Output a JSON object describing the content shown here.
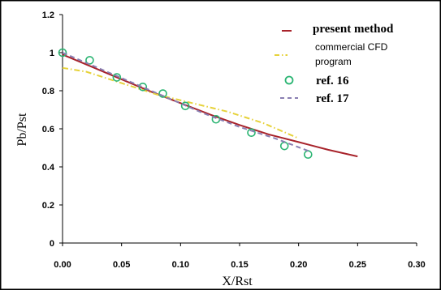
{
  "chart_data": {
    "type": "line",
    "title": "",
    "xlabel": "X/Rst",
    "ylabel": "Pb/Pst",
    "xlim": [
      0,
      0.3
    ],
    "ylim": [
      0,
      1.2
    ],
    "xticks": [
      0.0,
      0.05,
      0.1,
      0.15,
      0.2,
      0.25,
      0.3
    ],
    "xtick_labels": [
      "0.00",
      "0.05",
      "0.10",
      "0.15",
      "0.20",
      "0.25",
      "0.30"
    ],
    "yticks": [
      0,
      0.2,
      0.4,
      0.6,
      0.8,
      1.0,
      1.2
    ],
    "ytick_labels": [
      "0",
      "0.2",
      "0.4",
      "0.6",
      "0.8",
      "1",
      "1.2"
    ],
    "grid": false,
    "legend_position": "top-right",
    "series": [
      {
        "name": "present method",
        "style": "solid",
        "color": "#a8232b",
        "x": [
          0.0,
          0.025,
          0.05,
          0.075,
          0.1,
          0.125,
          0.15,
          0.175,
          0.2,
          0.225,
          0.25
        ],
        "y": [
          0.99,
          0.925,
          0.86,
          0.795,
          0.735,
          0.675,
          0.62,
          0.57,
          0.53,
          0.49,
          0.455
        ]
      },
      {
        "name": "commercial CFD program",
        "style": "dash-dot",
        "color": "#e6d23a",
        "x": [
          0.0,
          0.02,
          0.05,
          0.08,
          0.11,
          0.14,
          0.17,
          0.2
        ],
        "y": [
          0.92,
          0.9,
          0.84,
          0.78,
          0.735,
          0.69,
          0.63,
          0.55
        ]
      },
      {
        "name": "ref. 16",
        "style": "marker",
        "color": "#2bb573",
        "x": [
          0.0,
          0.023,
          0.046,
          0.068,
          0.085,
          0.104,
          0.13,
          0.16,
          0.188,
          0.208
        ],
        "y": [
          1.0,
          0.96,
          0.87,
          0.82,
          0.785,
          0.72,
          0.65,
          0.58,
          0.51,
          0.465
        ]
      },
      {
        "name": "ref. 17",
        "style": "dashed",
        "color": "#8a7fb2",
        "x": [
          0.0,
          0.03,
          0.06,
          0.09,
          0.12,
          0.15,
          0.18,
          0.21
        ],
        "y": [
          1.0,
          0.92,
          0.84,
          0.76,
          0.68,
          0.61,
          0.55,
          0.48
        ]
      }
    ]
  },
  "legend": {
    "present_method": "present method",
    "cfd_line1": "commercial CFD",
    "cfd_line2": "program",
    "ref16": "ref. 16",
    "ref17": "ref. 17"
  }
}
